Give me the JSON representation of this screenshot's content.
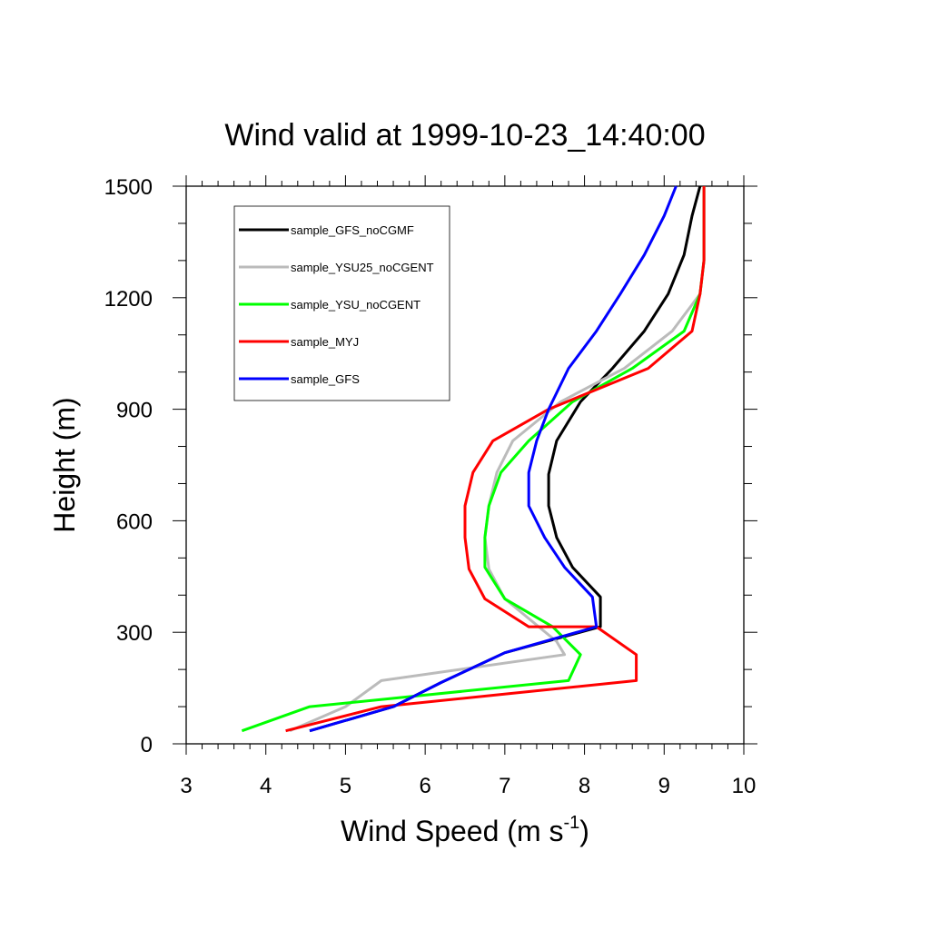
{
  "chart_data": {
    "type": "line",
    "title": "Wind valid at 1999-10-23_14:40:00",
    "xlabel": "Wind Speed (m s",
    "xlabel_sup": "-1",
    "xlabel_close": ")",
    "ylabel": "Height (m)",
    "xlim": [
      3,
      10
    ],
    "ylim": [
      0,
      1500
    ],
    "xticks": [
      "3",
      "4",
      "5",
      "6",
      "7",
      "8",
      "9",
      "10"
    ],
    "yticks": [
      "0",
      "300",
      "600",
      "900",
      "1200",
      "1500"
    ],
    "grid": false,
    "legend_position": "top-left",
    "series": [
      {
        "name": "sample_GFS_noCGMF",
        "color": "#000000",
        "points": [
          [
            4.55,
            35
          ],
          [
            5.6,
            100
          ],
          [
            6.2,
            165
          ],
          [
            7.0,
            245
          ],
          [
            8.2,
            315
          ],
          [
            8.2,
            395
          ],
          [
            7.85,
            475
          ],
          [
            7.65,
            555
          ],
          [
            7.55,
            640
          ],
          [
            7.55,
            725
          ],
          [
            7.65,
            815
          ],
          [
            7.95,
            920
          ],
          [
            8.35,
            1010
          ],
          [
            8.75,
            1110
          ],
          [
            9.05,
            1210
          ],
          [
            9.25,
            1315
          ],
          [
            9.35,
            1420
          ],
          [
            9.45,
            1500
          ]
        ]
      },
      {
        "name": "sample_YSU25_noCGENT",
        "color": "#bbbbbb",
        "points": [
          [
            4.3,
            35
          ],
          [
            5.0,
            100
          ],
          [
            5.45,
            170
          ],
          [
            7.75,
            240
          ],
          [
            7.65,
            275
          ],
          [
            7.0,
            390
          ],
          [
            6.8,
            470
          ],
          [
            6.75,
            555
          ],
          [
            6.8,
            640
          ],
          [
            6.9,
            730
          ],
          [
            7.1,
            815
          ],
          [
            7.7,
            920
          ],
          [
            8.5,
            1010
          ],
          [
            9.1,
            1110
          ],
          [
            9.45,
            1210
          ],
          [
            9.5,
            1300
          ],
          [
            9.5,
            1400
          ],
          [
            9.5,
            1500
          ]
        ]
      },
      {
        "name": "sample_YSU_noCGENT",
        "color": "#00ff00",
        "points": [
          [
            3.7,
            35
          ],
          [
            4.55,
            100
          ],
          [
            7.8,
            170
          ],
          [
            7.95,
            240
          ],
          [
            7.6,
            315
          ],
          [
            7.0,
            390
          ],
          [
            6.75,
            475
          ],
          [
            6.75,
            555
          ],
          [
            6.8,
            640
          ],
          [
            6.95,
            730
          ],
          [
            7.3,
            815
          ],
          [
            7.85,
            920
          ],
          [
            8.6,
            1010
          ],
          [
            9.25,
            1110
          ],
          [
            9.45,
            1210
          ],
          [
            9.5,
            1300
          ],
          [
            9.5,
            1400
          ],
          [
            9.5,
            1500
          ]
        ]
      },
      {
        "name": "sample_MYJ",
        "color": "#ff0000",
        "points": [
          [
            4.25,
            35
          ],
          [
            5.45,
            100
          ],
          [
            8.65,
            170
          ],
          [
            8.65,
            240
          ],
          [
            8.15,
            315
          ],
          [
            7.3,
            315
          ],
          [
            6.75,
            390
          ],
          [
            6.55,
            470
          ],
          [
            6.5,
            555
          ],
          [
            6.5,
            640
          ],
          [
            6.6,
            730
          ],
          [
            6.85,
            815
          ],
          [
            7.55,
            900
          ],
          [
            8.8,
            1010
          ],
          [
            9.35,
            1110
          ],
          [
            9.45,
            1210
          ],
          [
            9.5,
            1300
          ],
          [
            9.5,
            1400
          ],
          [
            9.5,
            1500
          ]
        ]
      },
      {
        "name": "sample_GFS",
        "color": "#0000ff",
        "points": [
          [
            4.55,
            35
          ],
          [
            5.6,
            100
          ],
          [
            6.2,
            165
          ],
          [
            7.0,
            245
          ],
          [
            8.15,
            315
          ],
          [
            8.1,
            395
          ],
          [
            7.75,
            475
          ],
          [
            7.5,
            555
          ],
          [
            7.3,
            640
          ],
          [
            7.3,
            730
          ],
          [
            7.4,
            815
          ],
          [
            7.55,
            900
          ],
          [
            7.8,
            1010
          ],
          [
            8.15,
            1110
          ],
          [
            8.45,
            1210
          ],
          [
            8.75,
            1315
          ],
          [
            9.0,
            1420
          ],
          [
            9.15,
            1500
          ]
        ]
      }
    ]
  }
}
